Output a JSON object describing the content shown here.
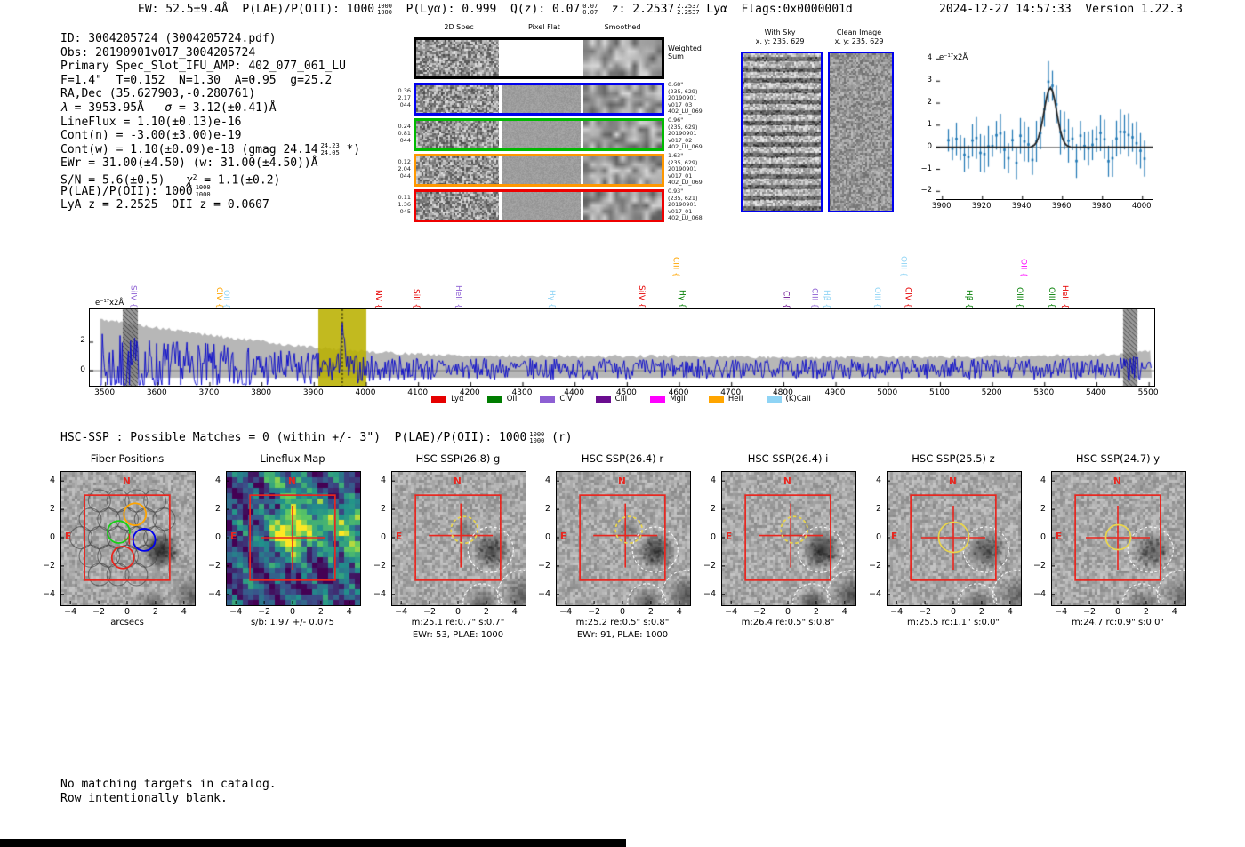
{
  "header": {
    "left_segments": [
      {
        "t": "EW: 52.5±9.4Å  P(LAE)/P(OII): 1000"
      },
      {
        "frac": [
          "1000",
          "1000"
        ]
      },
      {
        "t": "  P(Lyα): 0.999  Q(z): 0.07"
      },
      {
        "frac": [
          "0.07",
          "0.07"
        ]
      },
      {
        "t": "  z: 2.2537"
      },
      {
        "frac": [
          "2.2537",
          "2.2537"
        ]
      },
      {
        "t": " Lyα  Flags:0x0000001d"
      }
    ],
    "right_text": "2024-12-27 14:57:33  Version 1.22.3"
  },
  "info_lines": [
    [
      {
        "t": "ID: 3004205724 (3004205724.pdf)"
      }
    ],
    [
      {
        "t": "Obs: 20190901v017_3004205724"
      }
    ],
    [
      {
        "t": "Primary Spec_Slot_IFU_AMP: 402_077_061_LU"
      }
    ],
    [
      {
        "t": "F=1.4\"  T=0.152  N=1.30  A=0.95  g=25.2"
      }
    ],
    [
      {
        "t": "RA,Dec (35.627903,-0.280761)"
      }
    ],
    [
      {
        "i": "λ"
      },
      {
        "t": " = 3953.95Å   "
      },
      {
        "i": "σ"
      },
      {
        "t": " = 3.12(±0.41)Å"
      }
    ],
    [
      {
        "t": "LineFlux = 1.10(±0.13)e-16"
      }
    ],
    [
      {
        "t": "Cont(n) = -3.00(±3.00)e-19"
      }
    ],
    [
      {
        "t": "Cont(w) = 1.10(±0.09)e-18 (gmag 24.14"
      },
      {
        "frac": [
          "24.23",
          "24.05"
        ]
      },
      {
        "t": " *)"
      }
    ],
    [
      {
        "t": "EWr = 31.00(±4.50) (w: 31.00(±4.50))Å"
      }
    ],
    [
      {
        "t": "S/N = 5.6(±0.5)   "
      },
      {
        "i": "χ"
      },
      {
        "sup": "2"
      },
      {
        "t": " = 1.1(±0.2)"
      }
    ],
    [
      {
        "t": "P(LAE)/P(OII): 1000"
      },
      {
        "frac": [
          "1000",
          "1000"
        ]
      }
    ],
    [
      {
        "t": "LyA z = 2.2525  OII z = 0.0607"
      }
    ]
  ],
  "spec2d": {
    "col_headers": [
      "2D Spec",
      "Pixel Flat",
      "Smoothed"
    ],
    "weighted_label": [
      "Weighted",
      "Sum"
    ],
    "rows": [
      {
        "border": "#0000ee",
        "left": [
          "0.36",
          "2.17",
          "044"
        ],
        "right": [
          "0.68\"",
          "(235, 629)",
          "20190901",
          "v017_03",
          "402_LU_069"
        ]
      },
      {
        "border": "#00b900",
        "left": [
          "0.24",
          "0.81",
          "044"
        ],
        "right": [
          "0.96\"",
          "(235, 629)",
          "20190901",
          "v017_02",
          "402_LU_069"
        ]
      },
      {
        "border": "#ff9800",
        "left": [
          "0.12",
          "2.04",
          "044"
        ],
        "right": [
          "1.63\"",
          "(235, 629)",
          "20190901",
          "v017_01",
          "402_LU_069"
        ]
      },
      {
        "border": "#ee0000",
        "left": [
          "0.11",
          "1.36",
          "045"
        ],
        "right": [
          "0.93\"",
          "(235, 621)",
          "20190901",
          "v017_01",
          "402_LU_068"
        ]
      }
    ]
  },
  "with_sky": {
    "title": [
      "With Sky",
      "x, y: 235, 629"
    ]
  },
  "clean_image": {
    "title": [
      "Clean Image",
      "x, y: 235, 629"
    ]
  },
  "hsc_line_segments": [
    {
      "t": "HSC-SSP : Possible Matches = 0 (within +/- 3\")  P(LAE)/P(OII): 1000"
    },
    {
      "frac": [
        "1000",
        "1000"
      ]
    },
    {
      "t": " (r)"
    }
  ],
  "footer_lines": [
    "No matching targets in catalog.",
    "Row intentionally blank."
  ],
  "chart_data": [
    {
      "id": "line_fit_plot",
      "type": "line",
      "ylabel_segments": [
        {
          "t": "e"
        },
        {
          "sup": "−17"
        },
        {
          "t": "x2Å"
        }
      ],
      "xlim": [
        3897,
        4005
      ],
      "ylim": [
        -2.35,
        4.3
      ],
      "xticks": [
        3900,
        3920,
        3940,
        3960,
        3980,
        4000
      ],
      "yticks": [
        4,
        3,
        2,
        1,
        0,
        -1,
        -2
      ],
      "grid": false,
      "gaussian_fit": {
        "center": 3953.95,
        "sigma": 3.12,
        "peak": 2.7
      },
      "points": {
        "x_start": 3903,
        "x_end": 4001,
        "x_step": 2,
        "noise_sigma": 0.6,
        "error_bar_mean": 0.75
      },
      "data_color": "#1f77b4",
      "fit_color": "#222222"
    },
    {
      "id": "full_spectrum",
      "type": "line",
      "ylabel_segments": [
        {
          "t": "e"
        },
        {
          "sup": "−17"
        },
        {
          "t": "x2Å"
        }
      ],
      "xlim": [
        3470,
        5510
      ],
      "ylim": [
        -1.06,
        4.31
      ],
      "xticks": [
        3500,
        3600,
        3700,
        3800,
        3900,
        4000,
        4100,
        4200,
        4300,
        4400,
        4500,
        4600,
        4700,
        4800,
        4900,
        5000,
        5100,
        5200,
        5300,
        5400,
        5500
      ],
      "yticks": [
        0,
        2
      ],
      "grid": false,
      "peak": {
        "center": 3953.95,
        "height": 3.2
      },
      "highlight_band": [
        3908,
        4000
      ],
      "dotted_line": 3953.95,
      "hatched_bands": [
        [
          3533,
          3562
        ],
        [
          5450,
          5478
        ]
      ],
      "envelope": [
        [
          3490,
          3.6
        ],
        [
          3550,
          3.3
        ],
        [
          3600,
          3.0
        ],
        [
          3650,
          2.75
        ],
        [
          3700,
          2.5
        ],
        [
          3750,
          2.25
        ],
        [
          3800,
          2.05
        ],
        [
          3850,
          1.8
        ],
        [
          3900,
          1.65
        ],
        [
          3950,
          1.5
        ],
        [
          4000,
          1.35
        ],
        [
          4100,
          1.15
        ],
        [
          4200,
          1.05
        ],
        [
          4400,
          1.0
        ],
        [
          4600,
          1.02
        ],
        [
          4800,
          0.95
        ],
        [
          5000,
          0.95
        ],
        [
          5200,
          1.0
        ],
        [
          5350,
          1.05
        ],
        [
          5450,
          1.15
        ],
        [
          5505,
          1.35
        ]
      ],
      "line_color": "#0000cc",
      "envelope_color": "#aaaaaa",
      "highlight_color": "#bab000",
      "family_colors": {
        "Lya": "#e60000",
        "OII": "#007d00",
        "CIV": "#8d5fd3",
        "CIII": "#6a0d8f",
        "MgII": "#ff00ff",
        "HeII": "#ffa500",
        "CaII": "#8fd4f5"
      },
      "emission_markers": [
        {
          "label": "SiIV",
          "family": "CIV",
          "wavelength": 3558,
          "tier": 0
        },
        {
          "label": "CIV",
          "family": "HeII",
          "wavelength": 3722,
          "tier": 0
        },
        {
          "label": "OII",
          "family": "CaII",
          "wavelength": 3736,
          "tier": 0
        },
        {
          "label": "NV",
          "family": "Lya",
          "wavelength": 4027,
          "tier": 0
        },
        {
          "label": "SiII",
          "family": "Lya",
          "wavelength": 4100,
          "tier": 0
        },
        {
          "label": "HeII",
          "family": "CIV",
          "wavelength": 4181,
          "tier": 0
        },
        {
          "label": "Hγ",
          "family": "CaII",
          "wavelength": 4360,
          "tier": 0
        },
        {
          "label": "SiIV",
          "family": "Lya",
          "wavelength": 4532,
          "tier": 0
        },
        {
          "label": "CIII",
          "family": "HeII",
          "wavelength": 4597,
          "tier": 1
        },
        {
          "label": "Hγ",
          "family": "OII",
          "wavelength": 4609,
          "tier": 0
        },
        {
          "label": "CII",
          "family": "CIII",
          "wavelength": 4809,
          "tier": 0
        },
        {
          "label": "CIII",
          "family": "CIV",
          "wavelength": 4863,
          "tier": 0
        },
        {
          "label": "Hβ",
          "family": "CaII",
          "wavelength": 4886,
          "tier": 0
        },
        {
          "label": "OIII",
          "family": "CaII",
          "wavelength": 4983,
          "tier": 0
        },
        {
          "label": "OIII",
          "family": "CaII",
          "wavelength": 5034,
          "tier": 1
        },
        {
          "label": "CIV",
          "family": "Lya",
          "wavelength": 5042,
          "tier": 0
        },
        {
          "label": "Hβ",
          "family": "OII",
          "wavelength": 5159,
          "tier": 0
        },
        {
          "label": "OIII",
          "family": "OII",
          "wavelength": 5256,
          "tier": 0
        },
        {
          "label": "OII",
          "family": "MgII",
          "wavelength": 5264,
          "tier": 1
        },
        {
          "label": "OIII",
          "family": "OII",
          "wavelength": 5317,
          "tier": 0
        },
        {
          "label": "HeII",
          "family": "Lya",
          "wavelength": 5343,
          "tier": 0
        }
      ],
      "legend": [
        {
          "label": "Lyα",
          "color": "#e60000"
        },
        {
          "label": "OII",
          "color": "#007d00"
        },
        {
          "label": "CIV",
          "color": "#8d5fd3"
        },
        {
          "label": "CIII",
          "color": "#6a0d8f"
        },
        {
          "label": "MgII",
          "color": "#ff00ff"
        },
        {
          "label": "HeII",
          "color": "#ffa500"
        },
        {
          "label": "(K)CaII",
          "color": "#8fd4f5"
        }
      ],
      "legend_position": "bottom-center"
    },
    {
      "id": "cutout_row",
      "type": "heatmap",
      "axis_ticks": [
        -4,
        -2,
        0,
        2,
        4
      ],
      "axis_range": [
        -4.7,
        4.7
      ],
      "compass": {
        "north": "N",
        "east": "E"
      },
      "panels": [
        {
          "title": "Fiber Positions",
          "xlabel": "arcsecs",
          "kind": "fiber"
        },
        {
          "title": "Lineflux Map",
          "xlabel": "s/b: 1.97 +/- 0.075",
          "kind": "lineflux"
        },
        {
          "title": "HSC SSP(26.8) g",
          "xlabel": "m:25.1 re:0.7\" s:0.7\"",
          "caption2": "EWr: 53, PLAE: 1000",
          "kind": "cutout",
          "aperture": "dashed"
        },
        {
          "title": "HSC SSP(26.4) r",
          "xlabel": "m:25.2 re:0.5\" s:0.8\"",
          "caption2": "EWr: 91, PLAE: 1000",
          "kind": "cutout",
          "aperture": "dashed"
        },
        {
          "title": "HSC SSP(26.4) i",
          "xlabel": "m:26.4 re:0.5\" s:0.8\"",
          "kind": "cutout",
          "aperture": "dashed"
        },
        {
          "title": "HSC SSP(25.5) z",
          "xlabel": "m:25.5 rc:1.1\" s:0.0\"",
          "kind": "cutout",
          "aperture": "solid"
        },
        {
          "title": "HSC SSP(24.7) y",
          "xlabel": "m:24.7 rc:0.9\" s:0.0\"",
          "kind": "cutout",
          "aperture": "solid"
        }
      ]
    }
  ],
  "colors": {
    "panel_border_blue": "#0000ee",
    "accent_red": "#e8261f",
    "aperture_yellow": "#e8d44d",
    "square_red": "#e8261f"
  }
}
